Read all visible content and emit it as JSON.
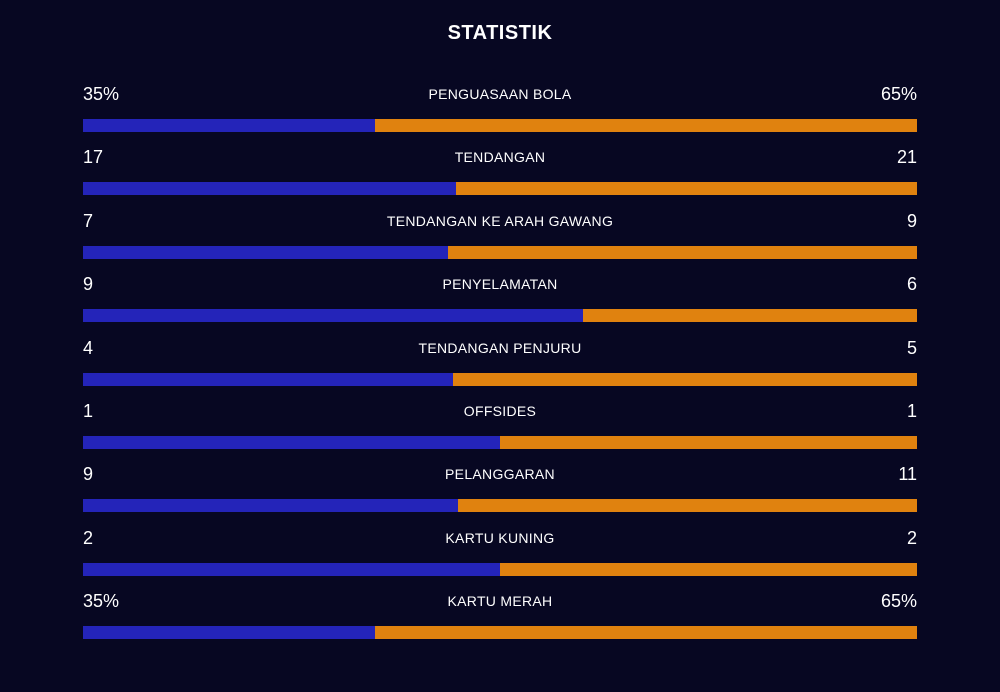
{
  "title": "STATISTIK",
  "colors": {
    "home": "#2424b9",
    "away": "#e0820f",
    "background": "#070722"
  },
  "stats": [
    {
      "label": "PENGUASAAN BOLA",
      "home": "35%",
      "away": "65%",
      "home_share": 0.35
    },
    {
      "label": "TENDANGAN",
      "home": "17",
      "away": "21",
      "home_share": 0.447
    },
    {
      "label": "TENDANGAN KE ARAH GAWANG",
      "home": "7",
      "away": "9",
      "home_share": 0.4375
    },
    {
      "label": "PENYELAMATAN",
      "home": "9",
      "away": "6",
      "home_share": 0.6
    },
    {
      "label": "TENDANGAN PENJURU",
      "home": "4",
      "away": "5",
      "home_share": 0.444
    },
    {
      "label": "OFFSIDES",
      "home": "1",
      "away": "1",
      "home_share": 0.5
    },
    {
      "label": "PELANGGARAN",
      "home": "9",
      "away": "11",
      "home_share": 0.45
    },
    {
      "label": "KARTU KUNING",
      "home": "2",
      "away": "2",
      "home_share": 0.5
    },
    {
      "label": "KARTU MERAH",
      "home": "35%",
      "away": "65%",
      "home_share": 0.35
    }
  ]
}
